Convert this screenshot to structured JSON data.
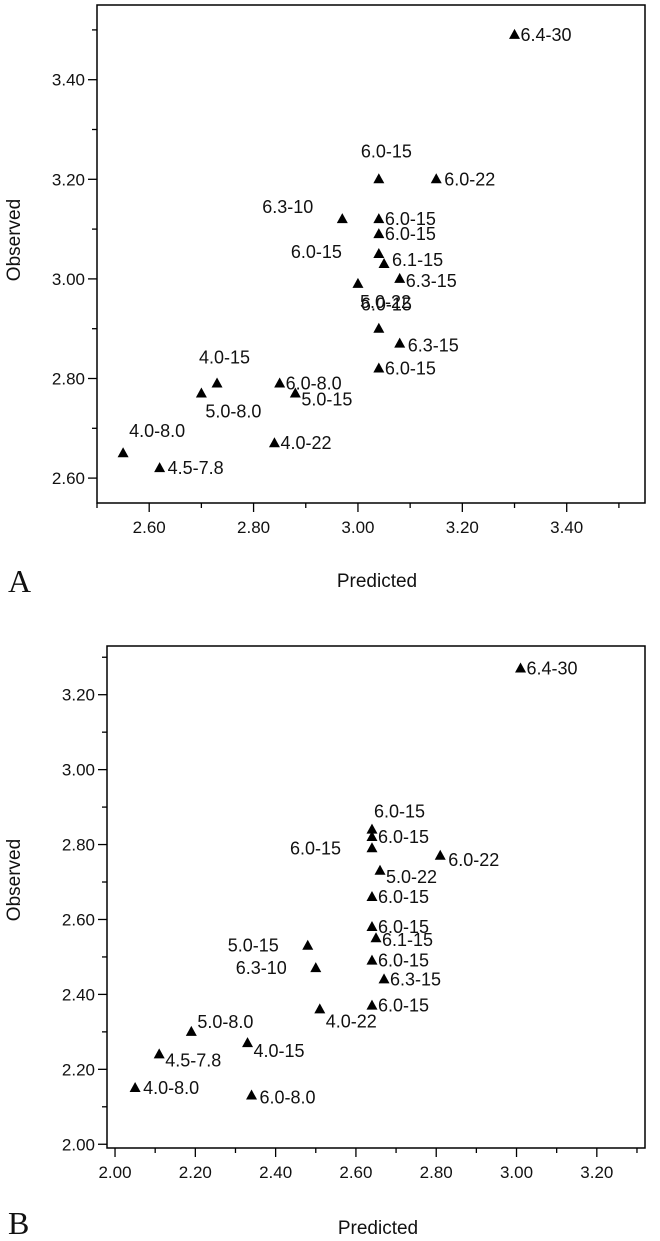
{
  "chart_data": [
    {
      "type": "scatter",
      "panel_label": "A",
      "xlabel": "Predicted",
      "ylabel": "Observed",
      "xlim": [
        2.5,
        3.55
      ],
      "ylim": [
        2.55,
        3.55
      ],
      "xticks": [
        "2.60",
        "2.80",
        "3.00",
        "3.20",
        "3.40"
      ],
      "xtick_values": [
        2.6,
        2.8,
        3.0,
        3.2,
        3.4
      ],
      "yticks": [
        "2.60",
        "2.80",
        "3.00",
        "3.20",
        "3.40"
      ],
      "ytick_values": [
        2.6,
        2.8,
        3.0,
        3.2,
        3.4
      ],
      "grid": false,
      "marker": "triangle",
      "points": [
        {
          "label": "6.4-30",
          "x": 3.3,
          "y": 3.49
        },
        {
          "label": "6.0-15",
          "x": 3.04,
          "y": 3.2
        },
        {
          "label": "6.0-22",
          "x": 3.15,
          "y": 3.2
        },
        {
          "label": "6.3-10",
          "x": 2.97,
          "y": 3.12
        },
        {
          "label": "6.0-15",
          "x": 3.04,
          "y": 3.12
        },
        {
          "label": "6.0-15",
          "x": 3.04,
          "y": 3.09
        },
        {
          "label": "6.0-15",
          "x": 3.04,
          "y": 3.05
        },
        {
          "label": "6.1-15",
          "x": 3.05,
          "y": 3.03
        },
        {
          "label": "6.3-15",
          "x": 3.08,
          "y": 3.0
        },
        {
          "label": "5.0-22",
          "x": 3.0,
          "y": 2.99
        },
        {
          "label": "6.0-15",
          "x": 3.04,
          "y": 2.9
        },
        {
          "label": "6.3-15",
          "x": 3.08,
          "y": 2.87
        },
        {
          "label": "6.0-15",
          "x": 3.04,
          "y": 2.82
        },
        {
          "label": "4.0-15",
          "x": 2.73,
          "y": 2.79
        },
        {
          "label": "6.0-8.0",
          "x": 2.85,
          "y": 2.79
        },
        {
          "label": "5.0-8.0",
          "x": 2.7,
          "y": 2.77
        },
        {
          "label": "5.0-15",
          "x": 2.88,
          "y": 2.77
        },
        {
          "label": "4.0-22",
          "x": 2.84,
          "y": 2.67
        },
        {
          "label": "4.0-8.0",
          "x": 2.55,
          "y": 2.65
        },
        {
          "label": "4.5-7.8",
          "x": 2.62,
          "y": 2.62
        }
      ]
    },
    {
      "type": "scatter",
      "panel_label": "B",
      "xlabel": "Predicted",
      "ylabel": "Observed",
      "xlim": [
        1.98,
        3.32
      ],
      "ylim": [
        1.99,
        3.33
      ],
      "xticks": [
        "2.00",
        "2.20",
        "2.40",
        "2.60",
        "2.80",
        "3.00",
        "3.20"
      ],
      "xtick_values": [
        2.0,
        2.2,
        2.4,
        2.6,
        2.8,
        3.0,
        3.2
      ],
      "yticks": [
        "2.00",
        "2.20",
        "2.40",
        "2.60",
        "2.80",
        "3.00",
        "3.20"
      ],
      "ytick_values": [
        2.0,
        2.2,
        2.4,
        2.6,
        2.8,
        3.0,
        3.2
      ],
      "grid": false,
      "marker": "triangle",
      "points": [
        {
          "label": "6.4-30",
          "x": 3.01,
          "y": 3.27
        },
        {
          "label": "6.0-15",
          "x": 2.64,
          "y": 2.84
        },
        {
          "label": "6.0-15",
          "x": 2.64,
          "y": 2.82
        },
        {
          "label": "6.0-15",
          "x": 2.64,
          "y": 2.79
        },
        {
          "label": "6.0-22",
          "x": 2.81,
          "y": 2.77
        },
        {
          "label": "5.0-22",
          "x": 2.66,
          "y": 2.73
        },
        {
          "label": "6.0-15",
          "x": 2.64,
          "y": 2.66
        },
        {
          "label": "6.0-15",
          "x": 2.64,
          "y": 2.58
        },
        {
          "label": "6.1-15",
          "x": 2.65,
          "y": 2.55
        },
        {
          "label": "5.0-15",
          "x": 2.48,
          "y": 2.53
        },
        {
          "label": "6.0-15",
          "x": 2.64,
          "y": 2.49
        },
        {
          "label": "6.3-10",
          "x": 2.5,
          "y": 2.47
        },
        {
          "label": "6.3-15",
          "x": 2.67,
          "y": 2.44
        },
        {
          "label": "6.0-15",
          "x": 2.64,
          "y": 2.37
        },
        {
          "label": "4.0-22",
          "x": 2.51,
          "y": 2.36
        },
        {
          "label": "5.0-8.0",
          "x": 2.19,
          "y": 2.3
        },
        {
          "label": "4.0-15",
          "x": 2.33,
          "y": 2.27
        },
        {
          "label": "4.5-7.8",
          "x": 2.11,
          "y": 2.24
        },
        {
          "label": "4.0-8.0",
          "x": 2.05,
          "y": 2.15
        },
        {
          "label": "6.0-8.0",
          "x": 2.34,
          "y": 2.13
        }
      ]
    }
  ]
}
